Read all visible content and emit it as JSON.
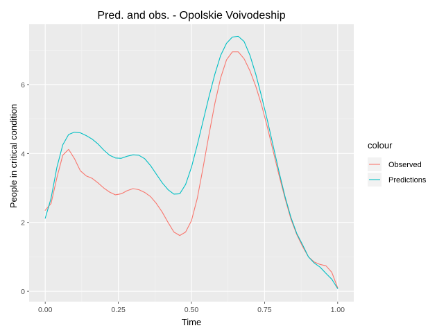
{
  "chart_data": {
    "type": "line",
    "title": "Pred. and obs. - Opolskie Voivodeship",
    "xlabel": "Time",
    "ylabel": "People in critical condition",
    "xlim": [
      -0.055,
      1.055
    ],
    "ylim": [
      -0.3,
      7.75
    ],
    "x_ticks": [
      0,
      0.25,
      0.5,
      0.75,
      1
    ],
    "x_tick_labels": [
      "0.00",
      "0.25",
      "0.50",
      "0.75",
      "1.00"
    ],
    "y_ticks": [
      0,
      2,
      4,
      6
    ],
    "y_tick_labels": [
      "0",
      "2",
      "4",
      "6"
    ],
    "grid": true,
    "background": "#ebebeb",
    "legend": {
      "title": "colour",
      "position": "right"
    },
    "series": [
      {
        "name": "Observed",
        "color": "#F8766D",
        "x": [
          0,
          0.02,
          0.04,
          0.06,
          0.08,
          0.1,
          0.12,
          0.14,
          0.16,
          0.18,
          0.2,
          0.22,
          0.24,
          0.26,
          0.28,
          0.3,
          0.32,
          0.34,
          0.36,
          0.38,
          0.4,
          0.42,
          0.44,
          0.46,
          0.48,
          0.5,
          0.52,
          0.54,
          0.56,
          0.58,
          0.6,
          0.62,
          0.64,
          0.66,
          0.68,
          0.7,
          0.72,
          0.74,
          0.76,
          0.78,
          0.8,
          0.82,
          0.84,
          0.86,
          0.88,
          0.9,
          0.92,
          0.94,
          0.96,
          0.98,
          1.0
        ],
        "y": [
          2.35,
          2.55,
          3.3,
          3.95,
          4.12,
          3.85,
          3.5,
          3.35,
          3.28,
          3.15,
          3.0,
          2.88,
          2.8,
          2.83,
          2.92,
          2.98,
          2.95,
          2.87,
          2.75,
          2.55,
          2.3,
          2.0,
          1.72,
          1.62,
          1.72,
          2.05,
          2.7,
          3.6,
          4.55,
          5.45,
          6.2,
          6.72,
          6.95,
          6.95,
          6.75,
          6.4,
          5.95,
          5.4,
          4.75,
          4.05,
          3.35,
          2.7,
          2.1,
          1.65,
          1.3,
          1.0,
          0.85,
          0.78,
          0.74,
          0.55,
          0.1
        ]
      },
      {
        "name": "Predictions",
        "color": "#00BFC4",
        "x": [
          0,
          0.02,
          0.04,
          0.06,
          0.08,
          0.1,
          0.12,
          0.14,
          0.16,
          0.18,
          0.2,
          0.22,
          0.24,
          0.26,
          0.28,
          0.3,
          0.32,
          0.34,
          0.36,
          0.38,
          0.4,
          0.42,
          0.44,
          0.46,
          0.48,
          0.5,
          0.52,
          0.54,
          0.56,
          0.58,
          0.6,
          0.62,
          0.64,
          0.66,
          0.68,
          0.7,
          0.72,
          0.74,
          0.76,
          0.78,
          0.8,
          0.82,
          0.84,
          0.86,
          0.88,
          0.9,
          0.92,
          0.94,
          0.96,
          0.98,
          1.0
        ],
        "y": [
          2.12,
          2.7,
          3.6,
          4.25,
          4.55,
          4.62,
          4.6,
          4.52,
          4.42,
          4.28,
          4.1,
          3.95,
          3.87,
          3.86,
          3.92,
          3.96,
          3.95,
          3.85,
          3.65,
          3.4,
          3.15,
          2.95,
          2.82,
          2.83,
          3.1,
          3.6,
          4.25,
          4.95,
          5.65,
          6.3,
          6.85,
          7.2,
          7.38,
          7.4,
          7.25,
          6.85,
          6.3,
          5.65,
          4.95,
          4.2,
          3.45,
          2.75,
          2.15,
          1.68,
          1.35,
          1.0,
          0.82,
          0.7,
          0.52,
          0.35,
          0.08
        ]
      }
    ]
  }
}
